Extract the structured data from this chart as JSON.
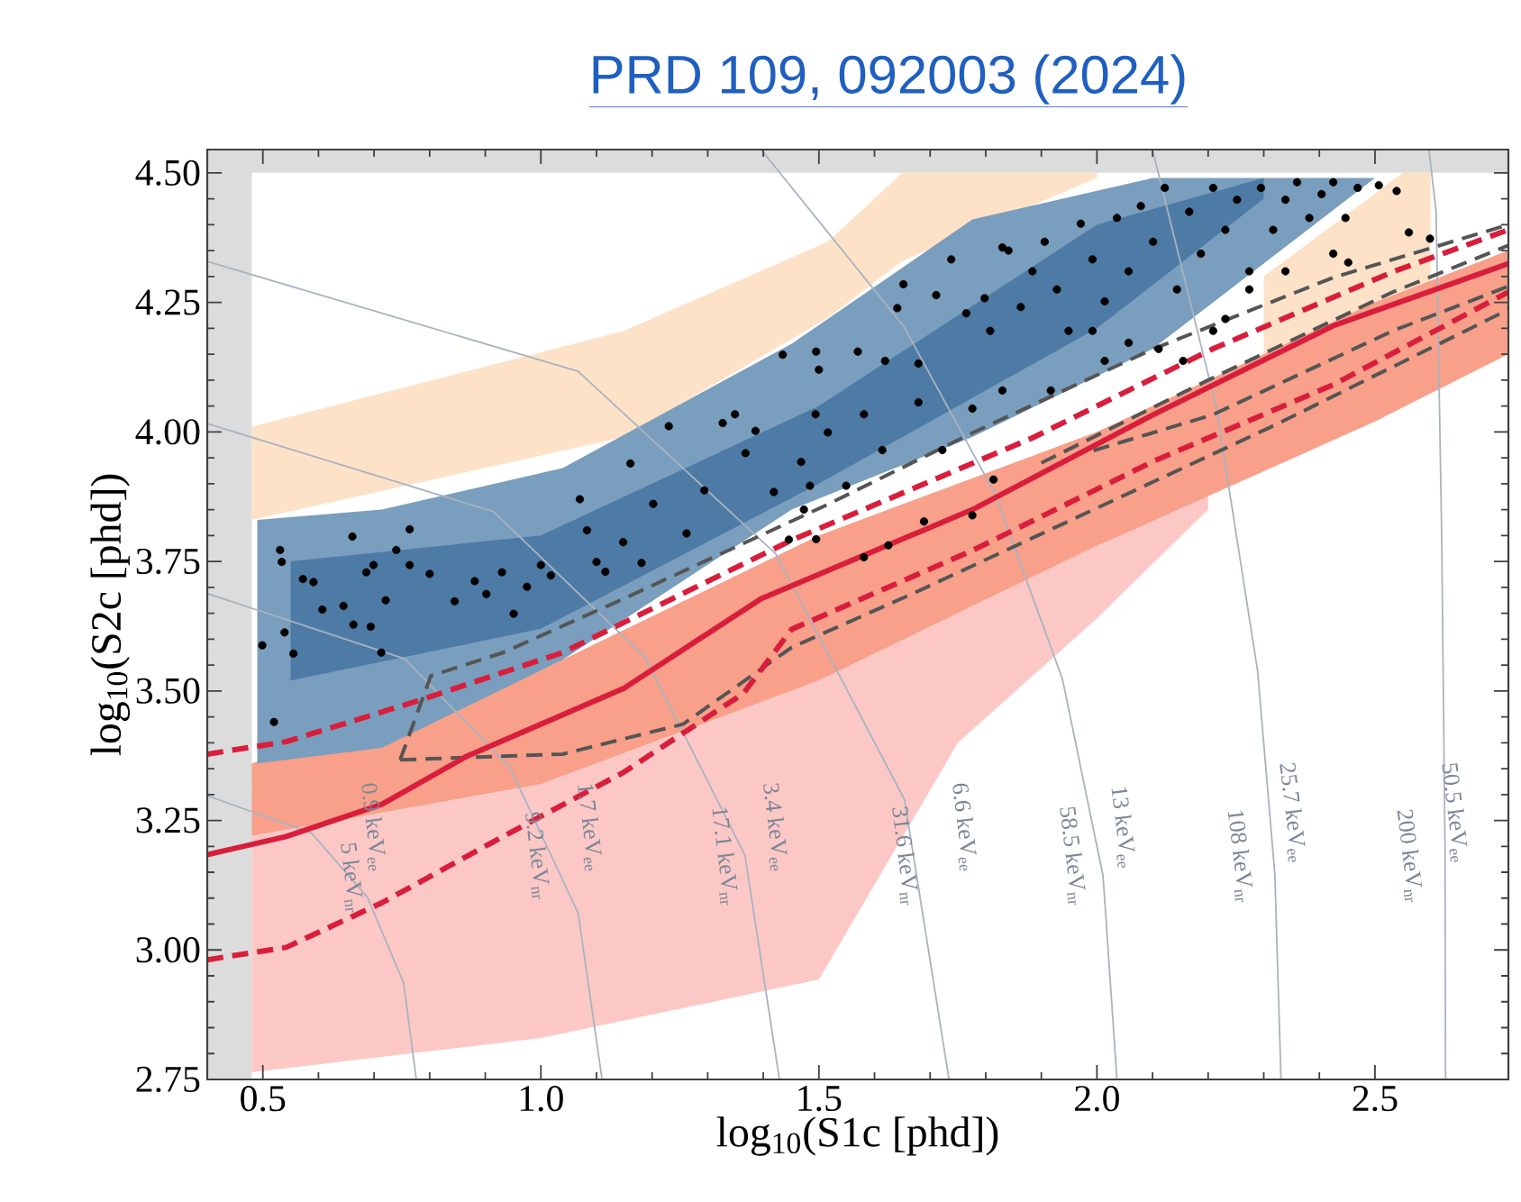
{
  "chart_data": {
    "type": "scatter",
    "title": "PRD 109, 092003 (2024)",
    "xlabel": "log$_{10}$(S1c [phd])",
    "ylabel": "log$_{10}$(S2c [phd])",
    "xlim": [
      0.4,
      2.74
    ],
    "ylim": [
      2.75,
      4.545
    ],
    "xticks": [
      {
        "value": 0.5,
        "label": "0.5"
      },
      {
        "value": 1.0,
        "label": "1.0"
      },
      {
        "value": 1.5,
        "label": "1.5"
      },
      {
        "value": 2.0,
        "label": "2.0"
      },
      {
        "value": 2.5,
        "label": "2.5"
      }
    ],
    "yticks": [
      {
        "value": 2.75,
        "label": "2.75"
      },
      {
        "value": 3.0,
        "label": "3.00"
      },
      {
        "value": 3.25,
        "label": "3.25"
      },
      {
        "value": 3.5,
        "label": "3.50"
      },
      {
        "value": 3.75,
        "label": "3.75"
      },
      {
        "value": 4.0,
        "label": "4.00"
      },
      {
        "value": 4.25,
        "label": "4.25"
      },
      {
        "value": 4.5,
        "label": "4.50"
      }
    ],
    "grid": false,
    "bands": [
      {
        "axis": "x",
        "from": 0.4,
        "to": 0.48,
        "color": "#dcdcdc"
      },
      {
        "axis": "y",
        "from": 4.5,
        "to": 4.545,
        "color": "#dcdcdc"
      }
    ],
    "series": [
      {
        "type": "line",
        "color": "#fde2c8",
        "x": [
          0.48,
          1.149,
          1.516,
          1.65,
          2.0
        ],
        "values": [
          null,
          null,
          null,
          null,
          null
        ],
        "lower": [
          3.83,
          3.99,
          4.22,
          4.33,
          4.49
        ],
        "upper": [
          4.01,
          4.195,
          4.367,
          4.5,
          4.5
        ]
      },
      {
        "type": "line",
        "color": "#fde2c8",
        "x": [
          2.3,
          2.45,
          2.55,
          2.6
        ],
        "values": [
          null,
          null,
          null,
          null
        ],
        "lower": [
          4.15,
          4.22,
          4.27,
          4.29
        ],
        "upper": [
          4.3,
          4.42,
          4.5,
          4.5
        ]
      },
      {
        "type": "line",
        "color": "#fcc8c6",
        "x": [
          0.48,
          1.0,
          1.5,
          1.75,
          2.0,
          2.2
        ],
        "values": [
          null,
          null,
          null,
          null,
          null,
          null
        ],
        "lower": [
          2.764,
          2.83,
          2.943,
          3.4,
          3.64,
          3.85
        ],
        "upper": [
          3.22,
          3.32,
          3.52,
          3.65,
          3.78,
          3.88
        ]
      },
      {
        "type": "line",
        "color": "#f8a08a",
        "x": [
          0.48,
          1.0,
          1.5,
          2.0,
          2.5,
          2.74
        ],
        "values": [
          null,
          null,
          null,
          null,
          null,
          null
        ],
        "lower": [
          3.22,
          3.32,
          3.52,
          3.78,
          4.02,
          4.15
        ],
        "upper": [
          3.36,
          3.54,
          3.8,
          4.0,
          4.25,
          4.35
        ]
      },
      {
        "type": "line",
        "color": "#7a9ebd",
        "x": [
          0.49,
          0.714,
          1.039,
          1.451,
          1.776,
          2.1,
          2.5
        ],
        "values": [
          null,
          null,
          null,
          null,
          null,
          null,
          null
        ],
        "lower": [
          3.36,
          3.39,
          3.56,
          3.85,
          3.99,
          4.16,
          4.49
        ],
        "upper": [
          3.83,
          3.85,
          3.93,
          4.17,
          4.41,
          4.49,
          4.49
        ]
      },
      {
        "type": "line",
        "color": "#4e7ba5",
        "x": [
          0.55,
          1.0,
          1.5,
          2.0,
          2.3
        ],
        "values": [
          null,
          null,
          null,
          null,
          null
        ],
        "lower": [
          3.52,
          3.62,
          3.9,
          4.2,
          4.45
        ],
        "upper": [
          3.75,
          3.8,
          4.05,
          4.4,
          4.49
        ]
      },
      {
        "type": "line",
        "color": "#a9b3c1",
        "line_style": "solid",
        "x": [
          0.4,
          0.588,
          0.688,
          0.753,
          0.776
        ],
        "values": [
          3.298,
          3.225,
          3.102,
          2.937,
          2.75
        ]
      },
      {
        "type": "line",
        "color": "#a9b3c1",
        "line_style": "solid",
        "x": [
          0.4,
          0.755,
          0.944,
          1.067,
          1.11
        ],
        "values": [
          3.688,
          3.562,
          3.353,
          3.071,
          2.75
        ]
      },
      {
        "type": "line",
        "color": "#a9b3c1",
        "line_style": "solid",
        "x": [
          0.4,
          0.915,
          1.188,
          1.367,
          1.429
        ],
        "values": [
          4.016,
          3.846,
          3.564,
          3.183,
          2.75
        ]
      },
      {
        "type": "line",
        "color": "#a9b3c1",
        "line_style": "solid",
        "x": [
          0.4,
          1.067,
          1.422,
          1.654,
          1.734
        ],
        "values": [
          4.329,
          4.117,
          3.765,
          3.29,
          2.75
        ]
      },
      {
        "type": "line",
        "color": "#a9b3c1",
        "line_style": "solid",
        "x": [
          1.396,
          1.653,
          1.817,
          1.938,
          2.011,
          2.036
        ],
        "values": [
          4.545,
          4.203,
          3.88,
          3.523,
          3.143,
          2.75
        ]
      },
      {
        "type": "line",
        "color": "#a9b3c1",
        "line_style": "solid",
        "x": [
          2.1,
          2.215,
          2.289,
          2.32,
          2.331
        ],
        "values": [
          4.545,
          4.046,
          3.538,
          3.146,
          2.75
        ]
      },
      {
        "type": "line",
        "color": "#a9b3c1",
        "line_style": "solid",
        "x": [
          2.597,
          2.61,
          2.62,
          2.626,
          2.627
        ],
        "values": [
          4.545,
          4.426,
          3.8,
          3.2,
          2.75
        ]
      },
      {
        "type": "line",
        "color": "#555555",
        "line_style": "dashed",
        "x": [
          0.747,
          0.802,
          0.932,
          1.149,
          1.516,
          1.776,
          2.101,
          2.425,
          2.74
        ],
        "values": [
          3.367,
          3.529,
          3.574,
          3.678,
          3.86,
          3.998,
          4.16,
          4.298,
          4.4
        ]
      },
      {
        "type": "line",
        "color": "#555555",
        "line_style": "dashed",
        "x": [
          0.747,
          1.039,
          1.256,
          1.451,
          1.669,
          1.994,
          2.318,
          2.74
        ],
        "values": [
          3.367,
          3.378,
          3.436,
          3.584,
          3.688,
          3.85,
          4.012,
          4.236
        ]
      },
      {
        "type": "line",
        "color": "#555555",
        "line_style": "dashed",
        "x": [
          1.9,
          2.2,
          2.532,
          2.74
        ],
        "values": [
          3.94,
          4.1,
          4.27,
          4.36
        ]
      },
      {
        "type": "line",
        "color": "#555555",
        "line_style": "dashed",
        "x": [
          1.994,
          2.208,
          2.532,
          2.74
        ],
        "values": [
          3.964,
          4.033,
          4.195,
          4.281
        ]
      },
      {
        "type": "line",
        "color": "#d91e3c",
        "line_style": "dashed",
        "x": [
          0.4,
          0.542,
          0.779,
          1.039,
          1.451,
          1.883,
          2.208,
          2.532,
          2.74
        ],
        "values": [
          3.378,
          3.402,
          3.481,
          3.574,
          3.791,
          3.988,
          4.16,
          4.309,
          4.39
        ]
      },
      {
        "type": "line",
        "color": "#d91e3c",
        "line_style": "solid",
        "x": [
          0.4,
          0.542,
          0.714,
          0.867,
          1.149,
          1.396,
          1.776,
          2.101,
          2.425,
          2.74
        ],
        "values": [
          3.184,
          3.219,
          3.281,
          3.374,
          3.505,
          3.678,
          3.85,
          4.033,
          4.205,
          4.325
        ]
      },
      {
        "type": "line",
        "color": "#d91e3c",
        "line_style": "dashed",
        "x": [
          0.4,
          0.542,
          0.714,
          0.932,
          1.149,
          1.364,
          1.451,
          1.776,
          2.101,
          2.425,
          2.74
        ],
        "values": [
          2.981,
          3.005,
          3.091,
          3.219,
          3.343,
          3.495,
          3.619,
          3.771,
          3.943,
          4.091,
          4.27
        ]
      },
      {
        "color": "#000000",
        "marker": "circle",
        "x": [
          0.499,
          0.531,
          0.534,
          0.539,
          0.555,
          0.572,
          0.591,
          0.607,
          0.645,
          0.661,
          0.663,
          0.686,
          0.694,
          0.699,
          0.713,
          0.721,
          0.74,
          0.764,
          0.764,
          0.8,
          0.845,
          0.881,
          0.902,
          0.93,
          0.951,
          0.975,
          1.0,
          1.018,
          1.07,
          1.083,
          1.1,
          1.116,
          1.148,
          1.161,
          1.181,
          1.202,
          1.23,
          1.262,
          1.294,
          1.327,
          1.349,
          1.368,
          1.386,
          1.419,
          1.435,
          1.446,
          1.468,
          1.494,
          0.52,
          1.495,
          1.5,
          1.57,
          1.619,
          1.652,
          1.641,
          1.738,
          1.711,
          1.679,
          1.765,
          1.798,
          1.83,
          1.841,
          1.808,
          1.863,
          1.884,
          1.906,
          1.928,
          1.949,
          1.971,
          1.992,
          2.014,
          2.036,
          2.057,
          2.079,
          2.101,
          2.122,
          2.144,
          2.166,
          2.187,
          2.209,
          2.231,
          2.252,
          2.274,
          2.295,
          2.317,
          2.339,
          2.36,
          2.382,
          2.404,
          2.425,
          2.447,
          2.469,
          2.507,
          2.539,
          2.561,
          2.599,
          2.339,
          2.425,
          2.452,
          2.111,
          2.155,
          2.014,
          1.917,
          1.776,
          1.679,
          1.581,
          1.516,
          1.484,
          1.473,
          1.495,
          1.581,
          1.625,
          1.814,
          1.776,
          1.689,
          2.209,
          2.231,
          2.274,
          1.992,
          2.057,
          1.83,
          1.722,
          1.614,
          1.549
        ],
        "values": [
          3.588,
          3.772,
          3.749,
          3.613,
          3.572,
          3.716,
          3.71,
          3.657,
          3.664,
          3.798,
          3.628,
          3.729,
          3.624,
          3.743,
          3.574,
          3.675,
          3.772,
          3.812,
          3.743,
          3.726,
          3.673,
          3.712,
          3.687,
          3.729,
          3.649,
          3.701,
          3.743,
          3.723,
          3.87,
          3.81,
          3.749,
          3.73,
          3.787,
          3.939,
          3.747,
          3.861,
          4.011,
          3.804,
          3.887,
          4.017,
          4.034,
          3.959,
          4.002,
          3.884,
          4.149,
          3.792,
          3.942,
          4.034,
          3.44,
          4.155,
          4.12,
          4.155,
          4.137,
          4.285,
          4.239,
          4.333,
          4.264,
          4.132,
          4.229,
          4.258,
          4.356,
          4.35,
          4.195,
          4.241,
          4.31,
          4.367,
          4.275,
          4.195,
          4.402,
          4.333,
          4.252,
          4.413,
          4.31,
          4.436,
          4.367,
          4.471,
          4.275,
          4.425,
          4.344,
          4.471,
          4.39,
          4.448,
          4.31,
          4.471,
          4.39,
          4.448,
          4.482,
          4.413,
          4.459,
          4.482,
          4.413,
          4.471,
          4.476,
          4.465,
          4.385,
          4.373,
          4.31,
          4.344,
          4.327,
          4.16,
          4.137,
          4.137,
          4.08,
          4.045,
          4.057,
          4.034,
          3.999,
          3.896,
          3.85,
          3.793,
          3.758,
          3.781,
          3.908,
          3.839,
          3.827,
          4.195,
          4.218,
          4.275,
          4.195,
          4.172,
          4.08,
          3.965,
          3.965,
          3.896
        ]
      }
    ],
    "annotations": [
      "0.9 keV$_{ee}$",
      "5 keV$_{nr}$",
      "9.2 keV$_{nr}$",
      "1.7 keV$_{ee}$",
      "17.1 keV$_{nr}$",
      "3.4 keV$_{ee}$",
      "31.6 keV$_{nr}$",
      "6.6 keV$_{ee}$",
      "58.5 keV$_{nr}$",
      "13 keV$_{ee}$",
      "108 keV$_{nr}$",
      "25.7 keV$_{ee}$",
      "200 keV$_{nr}$",
      "50.5 keV$_{ee}$"
    ]
  }
}
